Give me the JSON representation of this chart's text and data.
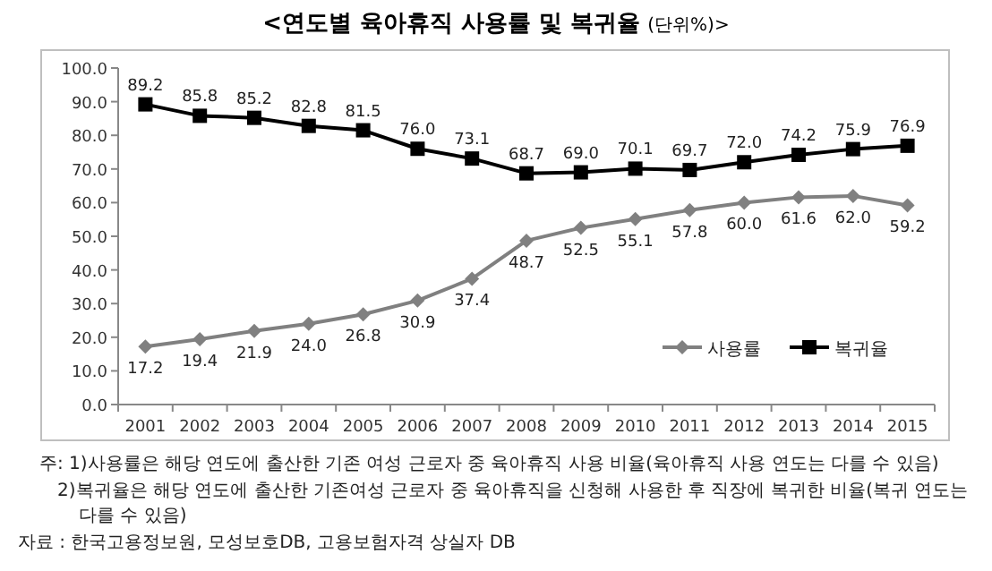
{
  "chart_data": {
    "type": "line",
    "title": "<연도별 육아휴직 사용률 및 복귀율",
    "subtitle": "(단위%)>",
    "categories": [
      "2001",
      "2002",
      "2003",
      "2004",
      "2005",
      "2006",
      "2007",
      "2008",
      "2009",
      "2010",
      "2011",
      "2012",
      "2013",
      "2014",
      "2015"
    ],
    "series": [
      {
        "name": "사용률",
        "color": "#808080",
        "marker": "diamond",
        "values": [
          17.2,
          19.4,
          21.9,
          24.0,
          26.8,
          30.9,
          37.4,
          48.7,
          52.5,
          55.1,
          57.8,
          60.0,
          61.6,
          62.0,
          59.2
        ],
        "value_labels": [
          "17.2",
          "19.4",
          "21.9",
          "24.0",
          "26.8",
          "30.9",
          "37.4",
          "48.7",
          "52.5",
          "55.1",
          "57.8",
          "60.0",
          "61.6",
          "62.0",
          "59.2"
        ]
      },
      {
        "name": "복귀율",
        "color": "#000000",
        "marker": "square",
        "values": [
          89.2,
          85.8,
          85.2,
          82.8,
          81.5,
          76.0,
          73.1,
          68.7,
          69.0,
          70.1,
          69.7,
          72.0,
          74.2,
          75.9,
          76.9
        ],
        "value_labels": [
          "89.2",
          "85.8",
          "85.2",
          "82.8",
          "81.5",
          "76.0",
          "73.1",
          "68.7",
          "69.0",
          "70.1",
          "69.7",
          "72.0",
          "74.2",
          "75.9",
          "76.9"
        ]
      }
    ],
    "ylim": [
      0,
      100
    ],
    "yticks": [
      {
        "value": 0,
        "label": "0.0"
      },
      {
        "value": 10,
        "label": "10.0"
      },
      {
        "value": 20,
        "label": "20.0"
      },
      {
        "value": 30,
        "label": "30.0"
      },
      {
        "value": 40,
        "label": "40.0"
      },
      {
        "value": 50,
        "label": "50.0"
      },
      {
        "value": 60,
        "label": "60.0"
      },
      {
        "value": 70,
        "label": "70.0"
      },
      {
        "value": 80,
        "label": "80.0"
      },
      {
        "value": 90,
        "label": "90.0"
      },
      {
        "value": 100,
        "label": "100.0"
      }
    ],
    "legend": "bottom right",
    "grid": false,
    "annotations": [
      "주: 1)사용률은 해당 연도에 출산한 기존 여성 근로자 중 육아휴직 사용 비율(육아휴직 사용 연도는 다를 수 있음)",
      "2)복귀율은 해당 연도에 출산한 기존여성 근로자 중 육아휴직을 신청해 사용한 후 직장에 복귀한 비율(복귀 연도는 다를 수 있음)",
      "자료 : 한국고용정보원, 모성보호DB, 고용보험자격 상실자 DB"
    ]
  }
}
